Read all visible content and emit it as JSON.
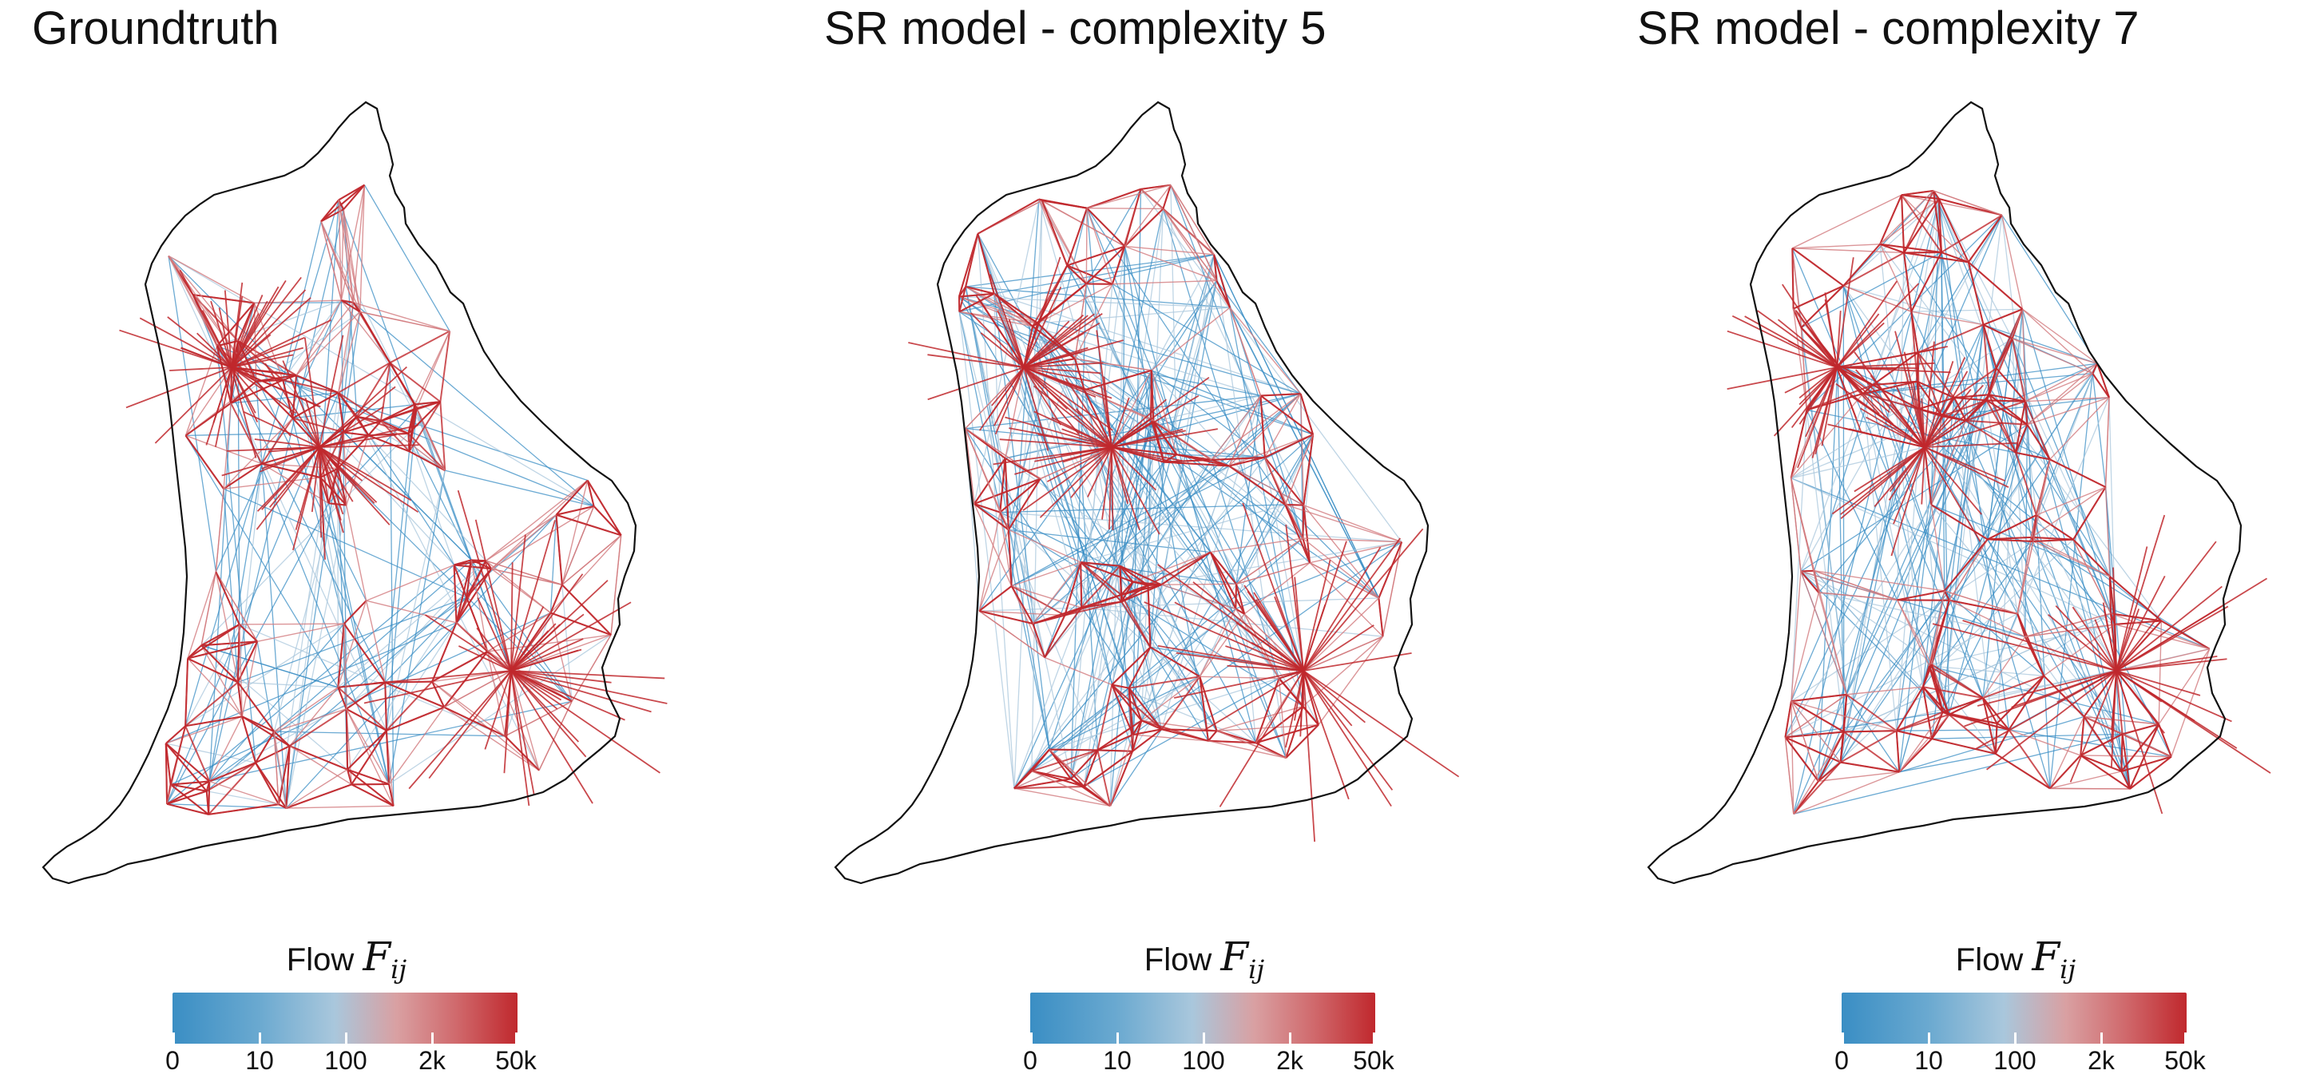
{
  "panels": [
    {
      "title": "Groundtruth",
      "legend": {
        "label": "Flow",
        "symbol": "F",
        "subscript": "ij",
        "ticks": [
          "0",
          "10",
          "100",
          "2k",
          "50k"
        ]
      }
    },
    {
      "title": "SR model - complexity 5",
      "legend": {
        "label": "Flow",
        "symbol": "F",
        "subscript": "ij",
        "ticks": [
          "0",
          "10",
          "100",
          "2k",
          "50k"
        ]
      }
    },
    {
      "title": "SR model - complexity 7",
      "legend": {
        "label": "Flow",
        "symbol": "F",
        "subscript": "ij",
        "ticks": [
          "0",
          "10",
          "100",
          "2k",
          "50k"
        ]
      }
    }
  ],
  "colors": {
    "low": "#3a8ec4",
    "mid": "#a9c7dc",
    "high": "#c0282d",
    "coast": "#111111"
  },
  "blue_dominance": [
    0.45,
    0.85,
    0.7
  ]
}
